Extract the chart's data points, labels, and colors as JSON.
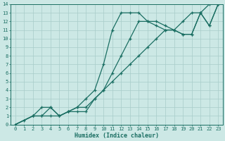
{
  "xlabel": "Humidex (Indice chaleur)",
  "ylabel": "",
  "bg_color": "#cce8e5",
  "grid_color": "#a8ccc9",
  "line_color": "#1a6e62",
  "xlim": [
    -0.5,
    23.5
  ],
  "ylim": [
    0,
    14
  ],
  "xticks": [
    0,
    1,
    2,
    3,
    4,
    5,
    6,
    7,
    8,
    9,
    10,
    11,
    12,
    13,
    14,
    15,
    16,
    17,
    18,
    19,
    20,
    21,
    22,
    23
  ],
  "yticks": [
    0,
    1,
    2,
    3,
    4,
    5,
    6,
    7,
    8,
    9,
    10,
    11,
    12,
    13,
    14
  ],
  "series1_x": [
    0,
    1,
    2,
    3,
    4,
    5,
    6,
    7,
    8,
    9,
    10,
    11,
    12,
    13,
    14,
    15,
    16,
    17,
    18,
    19,
    20,
    21,
    22,
    23
  ],
  "series1_y": [
    0,
    0.5,
    1,
    1,
    1,
    1,
    1.5,
    2,
    2,
    3,
    4,
    5,
    6,
    7,
    8,
    9,
    10,
    11,
    11,
    12,
    13,
    13,
    14,
    14
  ],
  "series2_x": [
    0,
    2,
    3,
    4,
    5,
    6,
    7,
    8,
    9,
    10,
    11,
    12,
    13,
    14,
    15,
    16,
    17,
    18,
    19,
    20,
    21,
    22,
    23
  ],
  "series2_y": [
    0,
    1,
    2,
    2,
    1,
    1.5,
    2,
    3,
    4,
    7,
    11,
    13,
    13,
    13,
    12,
    12,
    11.5,
    11,
    10.5,
    10.5,
    13,
    11.5,
    14
  ],
  "series3_x": [
    0,
    2,
    3,
    4,
    5,
    6,
    7,
    8,
    9,
    10,
    11,
    12,
    13,
    14,
    15,
    16,
    17,
    18,
    19,
    20,
    21,
    22,
    23
  ],
  "series3_y": [
    0,
    1,
    1,
    2,
    1,
    1.5,
    1.5,
    1.5,
    3,
    4,
    6,
    8,
    10,
    12,
    12,
    11.5,
    11,
    11,
    10.5,
    10.5,
    13,
    11.5,
    14
  ]
}
